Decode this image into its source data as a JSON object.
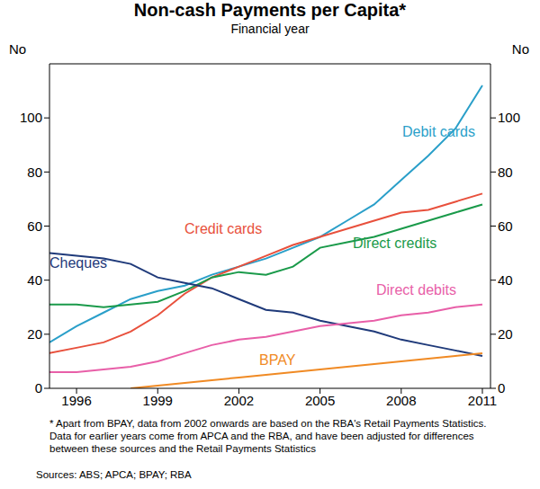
{
  "chart_data": {
    "type": "line",
    "title": "Non-cash Payments per Capita*",
    "subtitle": "Financial year",
    "y_label": "No",
    "x": [
      1995,
      1996,
      1997,
      1998,
      1999,
      2000,
      2001,
      2002,
      2003,
      2004,
      2005,
      2006,
      2007,
      2008,
      2009,
      2010,
      2011
    ],
    "xlim": [
      1995,
      2011.3
    ],
    "xticks": [
      1996,
      1999,
      2002,
      2005,
      2008,
      2011
    ],
    "ylim": [
      0,
      120
    ],
    "yticks": [
      0,
      20,
      40,
      60,
      80,
      100
    ],
    "grid": false,
    "series": [
      {
        "name": "Debit cards",
        "color": "#2a9fc9",
        "values": [
          17,
          23,
          28,
          33,
          36,
          38,
          42,
          45,
          48,
          52,
          56,
          62,
          68,
          77,
          86,
          96,
          112
        ]
      },
      {
        "name": "Credit cards",
        "color": "#e8503c",
        "values": [
          13,
          15,
          17,
          21,
          27,
          35,
          41,
          45,
          49,
          53,
          56,
          59,
          62,
          65,
          66,
          69,
          72
        ]
      },
      {
        "name": "Direct credits",
        "color": "#1a9a4a",
        "values": [
          31,
          31,
          30,
          31,
          32,
          36,
          41,
          43,
          42,
          45,
          52,
          54,
          56,
          59,
          62,
          65,
          68
        ]
      },
      {
        "name": "Cheques",
        "color": "#1f3a7a",
        "values": [
          50,
          49,
          48,
          46,
          41,
          39,
          37,
          33,
          29,
          28,
          25,
          23,
          21,
          18,
          16,
          14,
          12
        ]
      },
      {
        "name": "Direct debits",
        "color": "#e85fa8",
        "values": [
          6,
          6,
          7,
          8,
          10,
          13,
          16,
          18,
          19,
          21,
          23,
          24,
          25,
          27,
          28,
          30,
          31
        ]
      },
      {
        "name": "BPAY",
        "color": "#f08a24",
        "values": [
          null,
          null,
          null,
          0,
          1,
          2,
          3,
          4,
          5,
          6,
          7,
          8,
          9,
          10,
          11,
          12,
          13
        ]
      }
    ],
    "notes": "*   Apart from BPAY, data from 2002 onwards are based on the RBA's Retail Payments Statistics. Data for earlier years come from APCA and the RBA, and have been adjusted for differences between these sources and the Retail Payments Statistics",
    "sources": "Sources: ABS; APCA; BPAY; RBA"
  }
}
